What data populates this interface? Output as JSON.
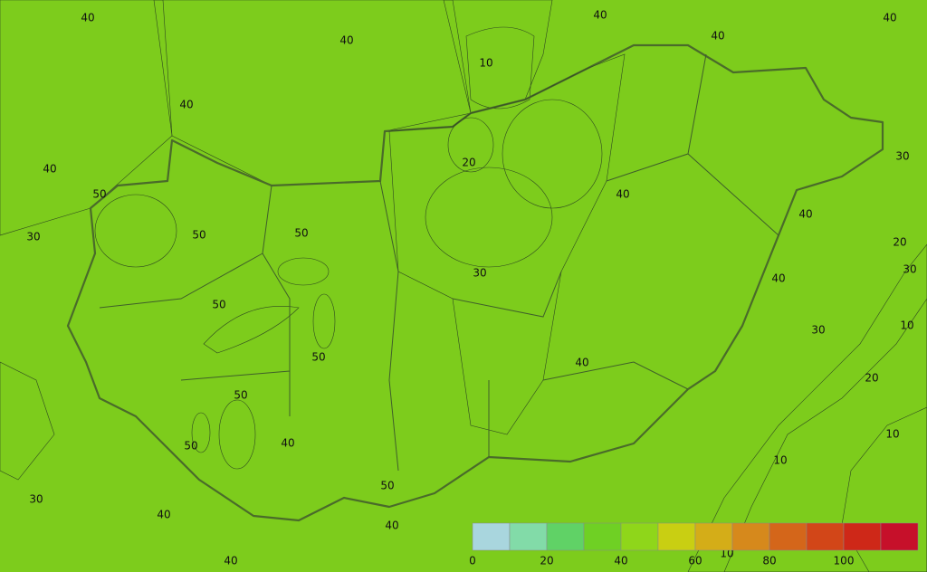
{
  "contour_labels": [
    40,
    40,
    40,
    40,
    40,
    10,
    40,
    40,
    50,
    20,
    30,
    40,
    40,
    30,
    50,
    50,
    20,
    30,
    30,
    40,
    50,
    10,
    30,
    50,
    40,
    20,
    50,
    10,
    50,
    40,
    10,
    50,
    30,
    40,
    40,
    40,
    10
  ],
  "legend": {
    "ticks": [
      0,
      20,
      40,
      60,
      80,
      100
    ],
    "colors": [
      "#a9d6de",
      "#82dba8",
      "#60d266",
      "#6fd024",
      "#8fd61a",
      "#c9cf12",
      "#d4ad18",
      "#d6891c",
      "#d4661a",
      "#d24618",
      "#ce2818",
      "#c6102a"
    ]
  }
}
